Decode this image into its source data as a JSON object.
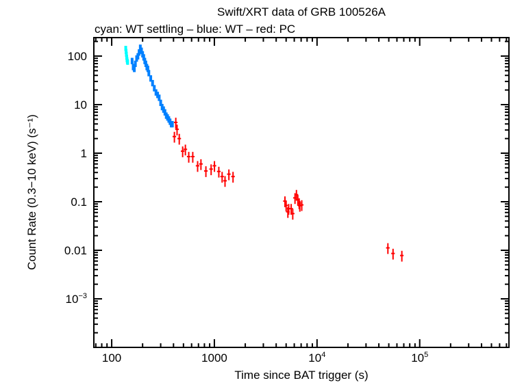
{
  "chart_data": {
    "type": "scatter",
    "title": "Swift/XRT data of GRB 100526A",
    "subtitle": "cyan: WT settling – blue: WT – red: PC",
    "xlabel": "Time since BAT trigger (s)",
    "ylabel": "Count Rate (0.3−10 keV) (s⁻¹)",
    "xscale": "log",
    "yscale": "log",
    "xlim": [
      67,
      740000
    ],
    "ylim": [
      0.0001,
      240
    ],
    "grid": false,
    "x_ticks": [
      {
        "value": 100,
        "label": "100"
      },
      {
        "value": 1000,
        "label": "1000"
      },
      {
        "value": 10000,
        "label": "10",
        "exp": "4"
      },
      {
        "value": 100000,
        "label": "10",
        "exp": "5"
      }
    ],
    "y_ticks": [
      {
        "value": 100,
        "label": "100"
      },
      {
        "value": 10,
        "label": "10"
      },
      {
        "value": 1,
        "label": "1"
      },
      {
        "value": 0.1,
        "label": "0.1"
      },
      {
        "value": 0.01,
        "label": "0.01"
      },
      {
        "value": 0.001,
        "label": "10",
        "exp": "−3"
      }
    ],
    "series": [
      {
        "name": "WT settling",
        "color": "#00ffff",
        "yerr_frac": 0.12,
        "xerr_frac": 0.01,
        "points": [
          [
            137,
            145
          ],
          [
            138,
            125
          ],
          [
            139,
            110
          ],
          [
            140,
            95
          ],
          [
            141,
            85
          ],
          [
            142,
            78
          ],
          [
            143,
            75
          ]
        ]
      },
      {
        "name": "WT",
        "color": "#0080ff",
        "yerr_frac": 0.15,
        "xerr_frac": 0.01,
        "points": [
          [
            158,
            80
          ],
          [
            162,
            60
          ],
          [
            166,
            55
          ],
          [
            170,
            70
          ],
          [
            175,
            90
          ],
          [
            180,
            100
          ],
          [
            185,
            120
          ],
          [
            190,
            150
          ],
          [
            195,
            130
          ],
          [
            200,
            110
          ],
          [
            205,
            95
          ],
          [
            210,
            80
          ],
          [
            215,
            70
          ],
          [
            220,
            60
          ],
          [
            225,
            55
          ],
          [
            230,
            45
          ],
          [
            240,
            35
          ],
          [
            250,
            28
          ],
          [
            260,
            22
          ],
          [
            270,
            18
          ],
          [
            280,
            16
          ],
          [
            290,
            14
          ],
          [
            300,
            11
          ],
          [
            310,
            9
          ],
          [
            320,
            8
          ],
          [
            330,
            7
          ],
          [
            340,
            6
          ],
          [
            350,
            5.5
          ],
          [
            360,
            5
          ],
          [
            370,
            4.5
          ],
          [
            380,
            4
          ],
          [
            390,
            4
          ]
        ]
      },
      {
        "name": "PC",
        "color": "#ff0000",
        "yerr_frac": 0.25,
        "xerr_frac": 0.04,
        "points": [
          [
            421,
            4.3
          ],
          [
            433,
            3.1
          ],
          [
            408,
            2.2
          ],
          [
            455,
            2.0
          ],
          [
            491,
            1.1
          ],
          [
            522,
            1.2
          ],
          [
            563,
            0.85
          ],
          [
            616,
            0.85
          ],
          [
            687,
            0.55
          ],
          [
            740,
            0.6
          ],
          [
            827,
            0.43
          ],
          [
            930,
            0.47
          ],
          [
            1002,
            0.55
          ],
          [
            1105,
            0.42
          ],
          [
            1190,
            0.33
          ],
          [
            1270,
            0.27
          ],
          [
            1385,
            0.37
          ],
          [
            1520,
            0.33
          ],
          [
            4870,
            0.103
          ],
          [
            5000,
            0.084
          ],
          [
            5200,
            0.062
          ],
          [
            5300,
            0.072
          ],
          [
            5600,
            0.072
          ],
          [
            5800,
            0.057
          ],
          [
            6100,
            0.12
          ],
          [
            6300,
            0.14
          ],
          [
            6500,
            0.11
          ],
          [
            6700,
            0.094
          ],
          [
            6800,
            0.083
          ],
          [
            7100,
            0.086
          ],
          [
            49000,
            0.0112
          ],
          [
            55000,
            0.0086
          ],
          [
            67000,
            0.0078
          ]
        ]
      }
    ]
  }
}
